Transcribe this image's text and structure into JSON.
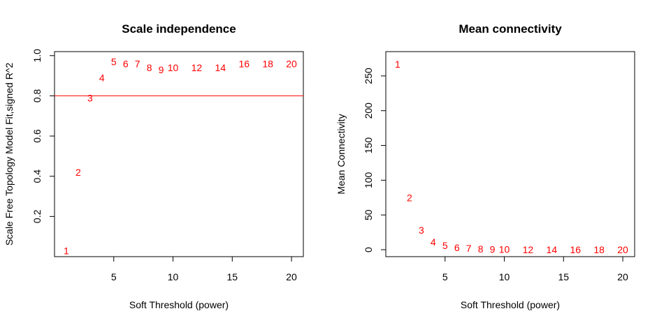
{
  "colors": {
    "points": "#ff0000",
    "axes": "#000000",
    "reference_line": "#ff0000"
  },
  "chart_data": [
    {
      "type": "scatter",
      "title": "Scale independence",
      "xlabel": "Soft Threshold (power)",
      "ylabel": "Scale Free Topology Model Fit,signed R^2",
      "xlim": [
        0,
        21
      ],
      "ylim": [
        0,
        1.02
      ],
      "xticks": [
        5,
        10,
        15,
        20
      ],
      "yticks": [
        0.2,
        0.4,
        0.6,
        0.8,
        1.0
      ],
      "ytick_labels": [
        "0.2",
        "0.4",
        "0.6",
        "0.8",
        "1.0"
      ],
      "grid": false,
      "reference_line_y": 0.8,
      "points": [
        {
          "x": 1,
          "y": 0.03,
          "label": "1"
        },
        {
          "x": 2,
          "y": 0.42,
          "label": "2"
        },
        {
          "x": 3,
          "y": 0.79,
          "label": "3"
        },
        {
          "x": 4,
          "y": 0.89,
          "label": "4"
        },
        {
          "x": 5,
          "y": 0.97,
          "label": "5"
        },
        {
          "x": 6,
          "y": 0.96,
          "label": "6"
        },
        {
          "x": 7,
          "y": 0.96,
          "label": "7"
        },
        {
          "x": 8,
          "y": 0.94,
          "label": "8"
        },
        {
          "x": 9,
          "y": 0.93,
          "label": "9"
        },
        {
          "x": 10,
          "y": 0.94,
          "label": "10"
        },
        {
          "x": 12,
          "y": 0.94,
          "label": "12"
        },
        {
          "x": 14,
          "y": 0.94,
          "label": "14"
        },
        {
          "x": 16,
          "y": 0.96,
          "label": "16"
        },
        {
          "x": 18,
          "y": 0.96,
          "label": "18"
        },
        {
          "x": 20,
          "y": 0.96,
          "label": "20"
        }
      ]
    },
    {
      "type": "scatter",
      "title": "Mean connectivity",
      "xlabel": "Soft Threshold (power)",
      "ylabel": "Mean Connectivity",
      "xlim": [
        0,
        21
      ],
      "ylim": [
        -10,
        285
      ],
      "xticks": [
        5,
        10,
        15,
        20
      ],
      "yticks": [
        0,
        50,
        100,
        150,
        200,
        250
      ],
      "ytick_labels": [
        "0",
        "50",
        "100",
        "150",
        "200",
        "250"
      ],
      "grid": false,
      "points": [
        {
          "x": 1,
          "y": 267,
          "label": "1"
        },
        {
          "x": 2,
          "y": 75,
          "label": "2"
        },
        {
          "x": 3,
          "y": 28,
          "label": "3"
        },
        {
          "x": 4,
          "y": 11,
          "label": "4"
        },
        {
          "x": 5,
          "y": 6,
          "label": "5"
        },
        {
          "x": 6,
          "y": 3,
          "label": "6"
        },
        {
          "x": 7,
          "y": 2,
          "label": "7"
        },
        {
          "x": 8,
          "y": 1,
          "label": "8"
        },
        {
          "x": 9,
          "y": 0.5,
          "label": "9"
        },
        {
          "x": 10,
          "y": 0.3,
          "label": "10"
        },
        {
          "x": 12,
          "y": 0.1,
          "label": "12"
        },
        {
          "x": 14,
          "y": 0.05,
          "label": "14"
        },
        {
          "x": 16,
          "y": 0.02,
          "label": "16"
        },
        {
          "x": 18,
          "y": 0.01,
          "label": "18"
        },
        {
          "x": 20,
          "y": 0.005,
          "label": "20"
        }
      ]
    }
  ]
}
